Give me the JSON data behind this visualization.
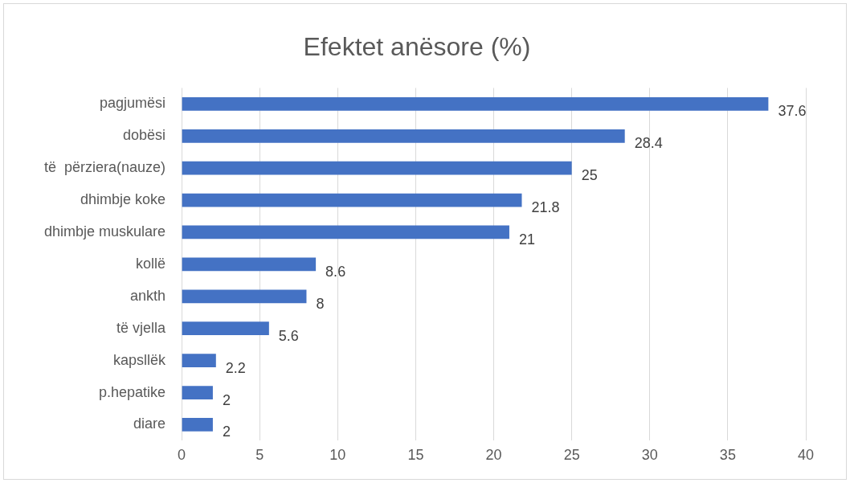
{
  "chart_data": {
    "type": "bar",
    "orientation": "horizontal",
    "title": "Efektet anësore (%)",
    "categories": [
      "pagjumësi",
      "dobësi",
      "të  përziera(nauze)",
      "dhimbje koke",
      "dhimbje muskulare",
      "kollë",
      "ankth",
      "të vjella",
      "kapsllëk",
      "p.hepatike",
      "diare"
    ],
    "values": [
      37.6,
      28.4,
      25,
      21.8,
      21,
      8.6,
      8,
      5.6,
      2.2,
      2,
      2
    ],
    "color": "#4472c4",
    "xlim": [
      0,
      40
    ],
    "xticks": [
      0,
      5,
      10,
      15,
      20,
      25,
      30,
      35,
      40
    ],
    "grid": "x",
    "data_labels": true
  }
}
